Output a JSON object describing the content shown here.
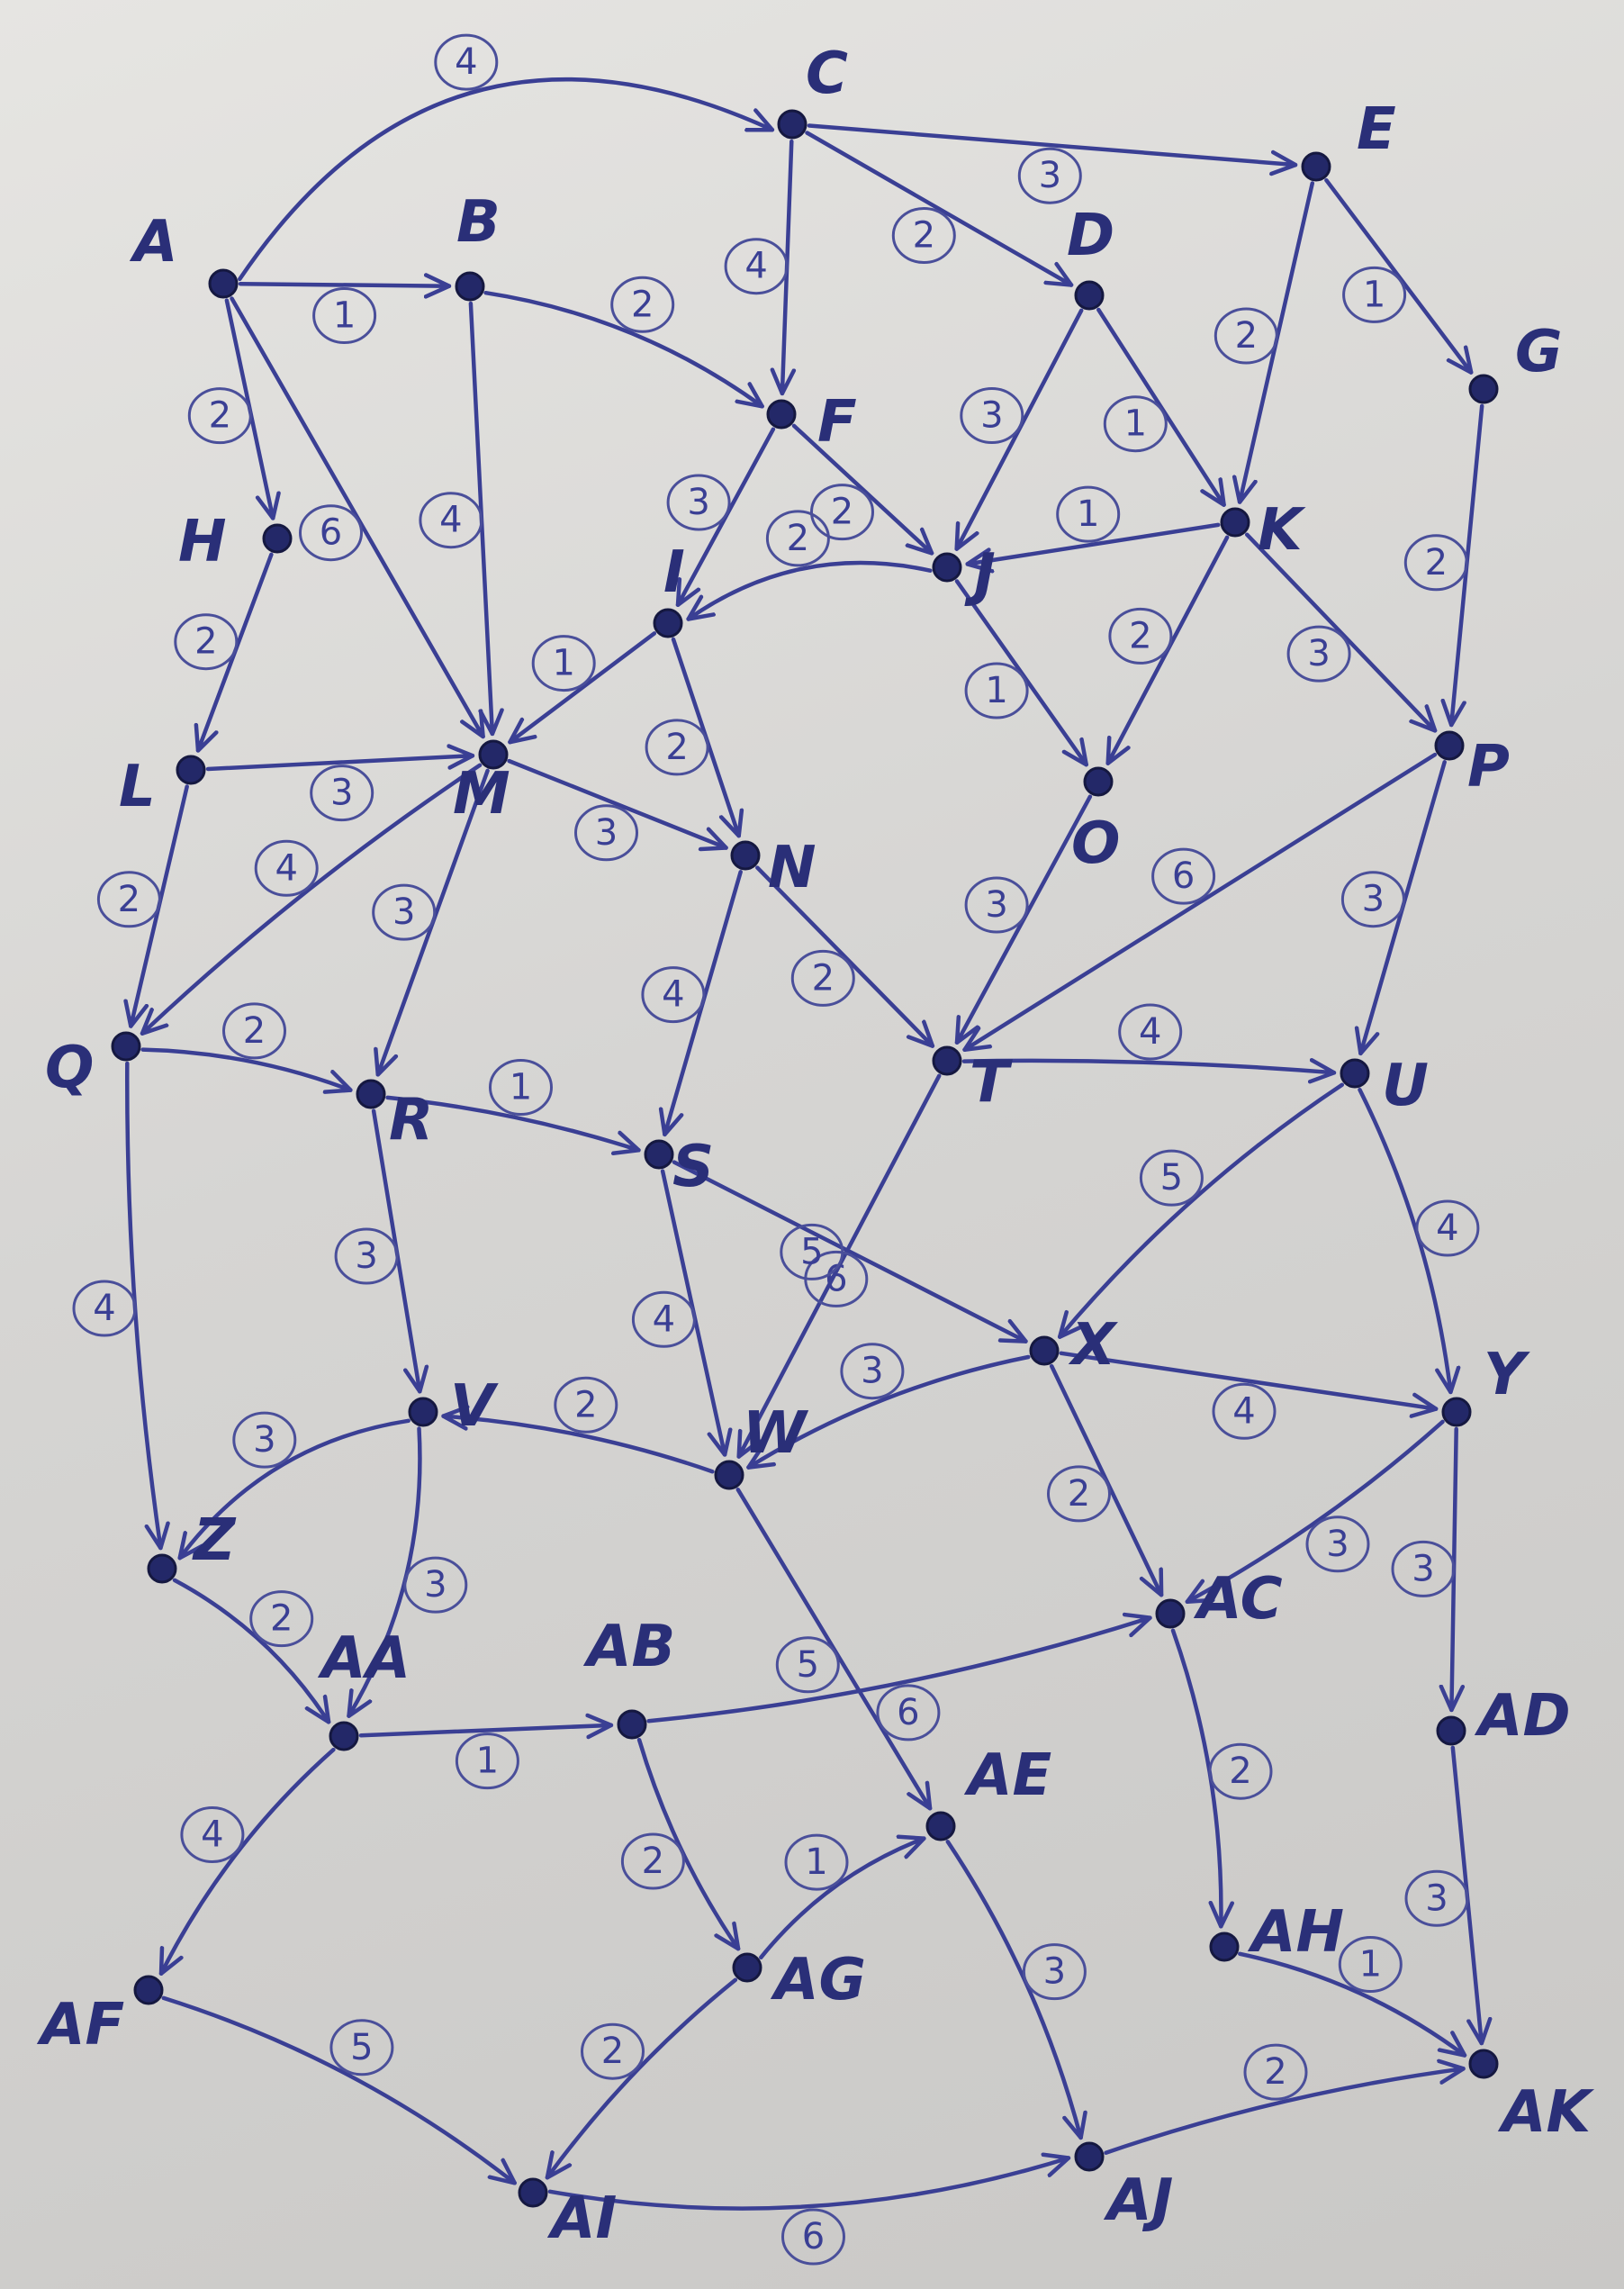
{
  "graph": {
    "nodes": [
      {
        "id": "A",
        "label": "A"
      },
      {
        "id": "B",
        "label": "B"
      },
      {
        "id": "C",
        "label": "C"
      },
      {
        "id": "D",
        "label": "D"
      },
      {
        "id": "E",
        "label": "E"
      },
      {
        "id": "F",
        "label": "F"
      },
      {
        "id": "G",
        "label": "G"
      },
      {
        "id": "H",
        "label": "H"
      },
      {
        "id": "I",
        "label": "I"
      },
      {
        "id": "J",
        "label": "J"
      },
      {
        "id": "K",
        "label": "K"
      },
      {
        "id": "L",
        "label": "L"
      },
      {
        "id": "M",
        "label": "M"
      },
      {
        "id": "N",
        "label": "N"
      },
      {
        "id": "O",
        "label": "O"
      },
      {
        "id": "P",
        "label": "P"
      },
      {
        "id": "Q",
        "label": "Q"
      },
      {
        "id": "R",
        "label": "R"
      },
      {
        "id": "S",
        "label": "S"
      },
      {
        "id": "T",
        "label": "T"
      },
      {
        "id": "U",
        "label": "U"
      },
      {
        "id": "V",
        "label": "V"
      },
      {
        "id": "W",
        "label": "W"
      },
      {
        "id": "X",
        "label": "X"
      },
      {
        "id": "Y",
        "label": "Y"
      },
      {
        "id": "Z",
        "label": "Z"
      },
      {
        "id": "AA",
        "label": "AA"
      },
      {
        "id": "AB",
        "label": "AB"
      },
      {
        "id": "AC",
        "label": "AC"
      },
      {
        "id": "AD",
        "label": "AD"
      },
      {
        "id": "AE",
        "label": "AE"
      },
      {
        "id": "AF",
        "label": "AF"
      },
      {
        "id": "AG",
        "label": "AG"
      },
      {
        "id": "AH",
        "label": "AH"
      },
      {
        "id": "AI",
        "label": "AI"
      },
      {
        "id": "AJ",
        "label": "AJ"
      },
      {
        "id": "AK",
        "label": "AK"
      }
    ],
    "edges": [
      {
        "from": "A",
        "to": "C",
        "weight": "4"
      },
      {
        "from": "A",
        "to": "B",
        "weight": "1"
      },
      {
        "from": "A",
        "to": "H",
        "weight": "2"
      },
      {
        "from": "A",
        "to": "M",
        "weight": "6"
      },
      {
        "from": "B",
        "to": "F",
        "weight": "2"
      },
      {
        "from": "B",
        "to": "M",
        "weight": "4"
      },
      {
        "from": "C",
        "to": "E",
        "weight": "3"
      },
      {
        "from": "C",
        "to": "F",
        "weight": "4"
      },
      {
        "from": "C",
        "to": "D",
        "weight": "2"
      },
      {
        "from": "D",
        "to": "J",
        "weight": "3"
      },
      {
        "from": "D",
        "to": "K",
        "weight": "1"
      },
      {
        "from": "E",
        "to": "G",
        "weight": "1"
      },
      {
        "from": "E",
        "to": "K",
        "weight": "2"
      },
      {
        "from": "F",
        "to": "J",
        "weight": "2"
      },
      {
        "from": "F",
        "to": "I",
        "weight": "3"
      },
      {
        "from": "G",
        "to": "P",
        "weight": "2"
      },
      {
        "from": "H",
        "to": "L",
        "weight": "2"
      },
      {
        "from": "J",
        "to": "I",
        "weight": "2"
      },
      {
        "from": "J",
        "to": "O",
        "weight": "1"
      },
      {
        "from": "K",
        "to": "J",
        "weight": "1"
      },
      {
        "from": "K",
        "to": "O",
        "weight": "2"
      },
      {
        "from": "K",
        "to": "P",
        "weight": "3"
      },
      {
        "from": "I",
        "to": "M",
        "weight": "1"
      },
      {
        "from": "I",
        "to": "N",
        "weight": "2"
      },
      {
        "from": "L",
        "to": "M",
        "weight": "3"
      },
      {
        "from": "L",
        "to": "Q",
        "weight": "2"
      },
      {
        "from": "M",
        "to": "N",
        "weight": "3"
      },
      {
        "from": "M",
        "to": "Q",
        "weight": "4"
      },
      {
        "from": "M",
        "to": "R",
        "weight": "3"
      },
      {
        "from": "N",
        "to": "T",
        "weight": "2"
      },
      {
        "from": "N",
        "to": "S",
        "weight": "4"
      },
      {
        "from": "O",
        "to": "T",
        "weight": "3"
      },
      {
        "from": "P",
        "to": "T",
        "weight": "6"
      },
      {
        "from": "P",
        "to": "U",
        "weight": "3"
      },
      {
        "from": "Q",
        "to": "R",
        "weight": "2"
      },
      {
        "from": "Q",
        "to": "Z",
        "weight": "4"
      },
      {
        "from": "R",
        "to": "S",
        "weight": "1"
      },
      {
        "from": "R",
        "to": "V",
        "weight": "3"
      },
      {
        "from": "S",
        "to": "X",
        "weight": "6"
      },
      {
        "from": "S",
        "to": "W",
        "weight": "4"
      },
      {
        "from": "T",
        "to": "U",
        "weight": "4"
      },
      {
        "from": "T",
        "to": "W",
        "weight": "5"
      },
      {
        "from": "U",
        "to": "X",
        "weight": "5"
      },
      {
        "from": "U",
        "to": "Y",
        "weight": "4"
      },
      {
        "from": "V",
        "to": "Z",
        "weight": "3"
      },
      {
        "from": "V",
        "to": "AA",
        "weight": "3"
      },
      {
        "from": "W",
        "to": "V",
        "weight": "2"
      },
      {
        "from": "W",
        "to": "AE",
        "weight": "5"
      },
      {
        "from": "X",
        "to": "W",
        "weight": "3"
      },
      {
        "from": "X",
        "to": "Y",
        "weight": "4"
      },
      {
        "from": "X",
        "to": "AC",
        "weight": "2"
      },
      {
        "from": "Y",
        "to": "AC",
        "weight": "3"
      },
      {
        "from": "Y",
        "to": "AD",
        "weight": "3"
      },
      {
        "from": "Z",
        "to": "AA",
        "weight": "2"
      },
      {
        "from": "AA",
        "to": "AB",
        "weight": "1"
      },
      {
        "from": "AA",
        "to": "AF",
        "weight": "4"
      },
      {
        "from": "AB",
        "to": "AC",
        "weight": "6"
      },
      {
        "from": "AB",
        "to": "AG",
        "weight": "2"
      },
      {
        "from": "AC",
        "to": "AH",
        "weight": "2"
      },
      {
        "from": "AD",
        "to": "AK",
        "weight": "3"
      },
      {
        "from": "AE",
        "to": "AJ",
        "weight": "3"
      },
      {
        "from": "AF",
        "to": "AI",
        "weight": "5"
      },
      {
        "from": "AG",
        "to": "AE",
        "weight": "1"
      },
      {
        "from": "AG",
        "to": "AI",
        "weight": "2"
      },
      {
        "from": "AH",
        "to": "AK",
        "weight": "1"
      },
      {
        "from": "AI",
        "to": "AJ",
        "weight": "6"
      },
      {
        "from": "AJ",
        "to": "AK",
        "weight": "2"
      }
    ]
  },
  "colors": {
    "ink": "#3a3f94",
    "node": "#232868",
    "label": "#2a2f78",
    "paper": "#e2e1de"
  }
}
